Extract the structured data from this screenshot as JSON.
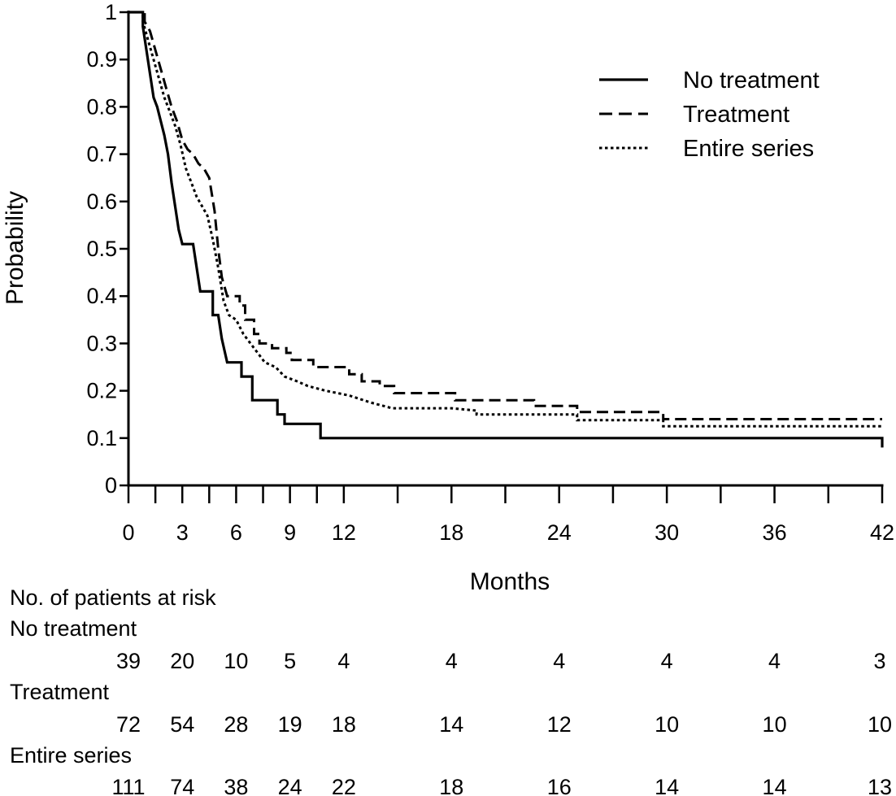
{
  "chart_data": {
    "type": "line",
    "step": true,
    "xlabel": "Months",
    "ylabel": "Probability",
    "xlim": [
      0,
      42
    ],
    "ylim": [
      0,
      1
    ],
    "x_ticks": [
      0,
      3,
      6,
      9,
      12,
      18,
      24,
      30,
      36,
      42
    ],
    "x_minor_ticks": [
      1.5,
      4.5,
      7.5,
      10.5,
      15,
      21,
      27,
      33,
      39
    ],
    "y_ticks": [
      0,
      0.1,
      0.2,
      0.3,
      0.4,
      0.5,
      0.6,
      0.7,
      0.8,
      0.9,
      1
    ],
    "y_tick_labels": [
      "0",
      "0.1",
      "0.2",
      "0.3",
      "0.4",
      "0.5",
      "0.6",
      "0.7",
      "0.8",
      "0.9",
      "1"
    ],
    "grid": false,
    "legend_position": "top-right",
    "series": [
      {
        "name": "No treatment",
        "style": "solid",
        "points": [
          [
            0,
            1
          ],
          [
            0.8,
            1
          ],
          [
            0.8,
            0.97
          ],
          [
            1.0,
            0.92
          ],
          [
            1.2,
            0.87
          ],
          [
            1.4,
            0.82
          ],
          [
            1.6,
            0.8
          ],
          [
            1.8,
            0.77
          ],
          [
            2.0,
            0.74
          ],
          [
            2.2,
            0.7
          ],
          [
            2.4,
            0.64
          ],
          [
            2.6,
            0.59
          ],
          [
            2.8,
            0.54
          ],
          [
            3.0,
            0.51
          ],
          [
            3.6,
            0.51
          ],
          [
            3.8,
            0.46
          ],
          [
            4.0,
            0.41
          ],
          [
            4.7,
            0.41
          ],
          [
            4.7,
            0.36
          ],
          [
            5.0,
            0.36
          ],
          [
            5.2,
            0.31
          ],
          [
            5.5,
            0.26
          ],
          [
            5.7,
            0.26
          ],
          [
            6.3,
            0.26
          ],
          [
            6.3,
            0.23
          ],
          [
            6.9,
            0.23
          ],
          [
            6.9,
            0.18
          ],
          [
            8.3,
            0.18
          ],
          [
            8.3,
            0.15
          ],
          [
            8.7,
            0.15
          ],
          [
            8.7,
            0.13
          ],
          [
            10.7,
            0.13
          ],
          [
            10.7,
            0.1
          ],
          [
            42,
            0.1
          ],
          [
            42,
            0.08
          ]
        ]
      },
      {
        "name": "Treatment",
        "style": "dashed",
        "points": [
          [
            0,
            1
          ],
          [
            0.9,
            1
          ],
          [
            0.9,
            0.98
          ],
          [
            1.2,
            0.96
          ],
          [
            1.5,
            0.92
          ],
          [
            1.8,
            0.88
          ],
          [
            2.1,
            0.84
          ],
          [
            2.4,
            0.8
          ],
          [
            2.7,
            0.77
          ],
          [
            3.0,
            0.73
          ],
          [
            3.3,
            0.71
          ],
          [
            3.6,
            0.7
          ],
          [
            3.9,
            0.68
          ],
          [
            4.2,
            0.67
          ],
          [
            4.5,
            0.65
          ],
          [
            4.8,
            0.58
          ],
          [
            5.0,
            0.5
          ],
          [
            5.2,
            0.44
          ],
          [
            5.5,
            0.4
          ],
          [
            6.2,
            0.4
          ],
          [
            6.2,
            0.38
          ],
          [
            6.5,
            0.38
          ],
          [
            6.5,
            0.35
          ],
          [
            7.0,
            0.35
          ],
          [
            7.0,
            0.32
          ],
          [
            7.3,
            0.32
          ],
          [
            7.3,
            0.3
          ],
          [
            8.0,
            0.3
          ],
          [
            8.0,
            0.29
          ],
          [
            8.8,
            0.29
          ],
          [
            8.8,
            0.28
          ],
          [
            9.1,
            0.28
          ],
          [
            9.1,
            0.265
          ],
          [
            10.3,
            0.265
          ],
          [
            10.3,
            0.25
          ],
          [
            12.3,
            0.25
          ],
          [
            12.3,
            0.235
          ],
          [
            13.0,
            0.235
          ],
          [
            13.0,
            0.22
          ],
          [
            14.0,
            0.22
          ],
          [
            14.0,
            0.21
          ],
          [
            14.8,
            0.21
          ],
          [
            14.8,
            0.195
          ],
          [
            18.2,
            0.195
          ],
          [
            18.2,
            0.18
          ],
          [
            22.6,
            0.18
          ],
          [
            22.6,
            0.168
          ],
          [
            25.0,
            0.168
          ],
          [
            25.0,
            0.155
          ],
          [
            29.8,
            0.155
          ],
          [
            29.8,
            0.14
          ],
          [
            42,
            0.14
          ]
        ]
      },
      {
        "name": "Entire series",
        "style": "dotted",
        "points": [
          [
            0,
            1
          ],
          [
            0.8,
            1
          ],
          [
            0.8,
            0.98
          ],
          [
            1.1,
            0.94
          ],
          [
            1.4,
            0.9
          ],
          [
            1.7,
            0.86
          ],
          [
            2.0,
            0.82
          ],
          [
            2.3,
            0.79
          ],
          [
            2.6,
            0.76
          ],
          [
            2.9,
            0.72
          ],
          [
            3.2,
            0.67
          ],
          [
            3.5,
            0.64
          ],
          [
            3.8,
            0.61
          ],
          [
            4.1,
            0.59
          ],
          [
            4.4,
            0.57
          ],
          [
            4.7,
            0.52
          ],
          [
            5.0,
            0.46
          ],
          [
            5.3,
            0.39
          ],
          [
            5.6,
            0.36
          ],
          [
            6.0,
            0.35
          ],
          [
            6.4,
            0.32
          ],
          [
            6.8,
            0.3
          ],
          [
            7.2,
            0.28
          ],
          [
            7.6,
            0.26
          ],
          [
            8.2,
            0.25
          ],
          [
            8.7,
            0.23
          ],
          [
            9.4,
            0.22
          ],
          [
            10.0,
            0.21
          ],
          [
            11.0,
            0.2
          ],
          [
            12.3,
            0.19
          ],
          [
            13.5,
            0.175
          ],
          [
            14.7,
            0.163
          ],
          [
            18.0,
            0.163
          ],
          [
            19.4,
            0.158
          ],
          [
            19.4,
            0.15
          ],
          [
            25.0,
            0.15
          ],
          [
            25.0,
            0.138
          ],
          [
            29.8,
            0.138
          ],
          [
            29.8,
            0.125
          ],
          [
            42,
            0.125
          ]
        ]
      }
    ],
    "at_risk": {
      "title": "No. of patients at risk",
      "times": [
        0,
        3,
        6,
        9,
        12,
        18,
        24,
        30,
        36,
        42
      ],
      "rows": [
        {
          "label": "No treatment",
          "values": [
            "39",
            "20",
            "10",
            "5",
            "4",
            "4",
            "4",
            "4",
            "4",
            "3"
          ]
        },
        {
          "label": "Treatment",
          "values": [
            "72",
            "54",
            "28",
            "19",
            "18",
            "14",
            "12",
            "10",
            "10",
            "10"
          ]
        },
        {
          "label": "Entire series",
          "values": [
            "111",
            "74",
            "38",
            "24",
            "22",
            "18",
            "16",
            "14",
            "14",
            "13"
          ]
        }
      ]
    }
  }
}
